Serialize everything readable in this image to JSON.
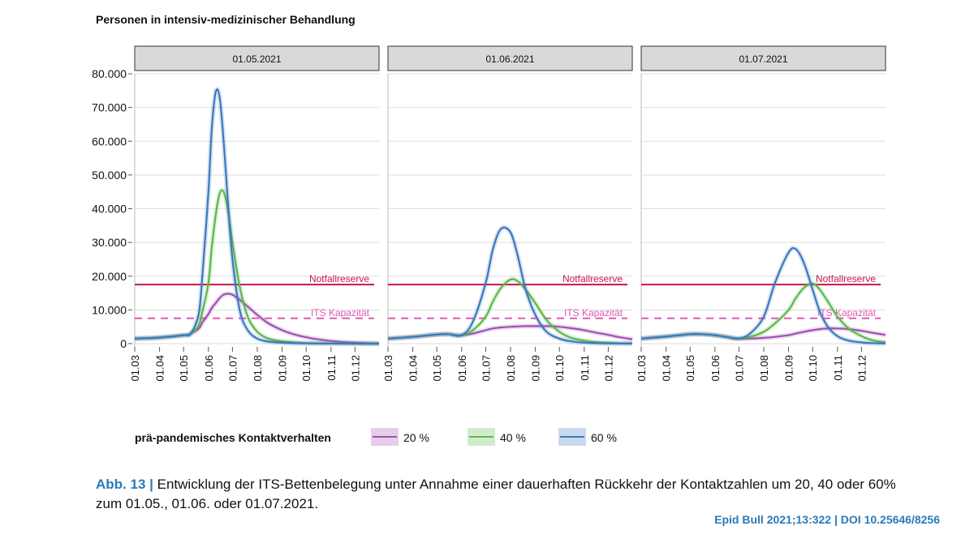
{
  "chart_data": {
    "type": "line",
    "title": "Personen in intensiv-medizinischer Behandlung",
    "y_ticks": [
      "0",
      "10.000",
      "20.000",
      "30.000",
      "40.000",
      "50.000",
      "60.000",
      "70.000",
      "80.000"
    ],
    "ylim": [
      0,
      80000
    ],
    "x_ticks": [
      "01.03",
      "01.04",
      "01.05",
      "01.06",
      "01.07",
      "01.08",
      "01.09",
      "01.10",
      "01.11",
      "01.12"
    ],
    "x_range": [
      "2021-03-01",
      "2021-12-31"
    ],
    "grid": true,
    "colors": {
      "s20": "#a050b4",
      "s40": "#5cb84a",
      "s60": "#3c78bf",
      "notfall": "#c8144c",
      "its": "#e05ab4"
    },
    "reference_lines": [
      {
        "label": "Notfallreserve",
        "y": 17500,
        "style": "solid"
      },
      {
        "label": "ITS Kapazität",
        "y": 7500,
        "style": "dashed"
      }
    ],
    "legend": {
      "title": "prä-pandemisches Kontaktverhalten",
      "items": [
        "20 %",
        "40 %",
        "60 %"
      ],
      "position": "bottom"
    },
    "panels": [
      {
        "label": "01.05.2021",
        "x": [
          "2021-03-01",
          "2021-04-01",
          "2021-05-01",
          "2021-05-10",
          "2021-05-20",
          "2021-05-25",
          "2021-06-01",
          "2021-06-05",
          "2021-06-10",
          "2021-06-15",
          "2021-06-20",
          "2021-06-25",
          "2021-07-01",
          "2021-07-10",
          "2021-07-20",
          "2021-08-01",
          "2021-08-15",
          "2021-09-01",
          "2021-09-15",
          "2021-10-01",
          "2021-10-15",
          "2021-11-01",
          "2021-11-15",
          "2021-12-01",
          "2021-12-15",
          "2021-12-31"
        ],
        "series": [
          {
            "name": "20 %",
            "values": [
              1500,
              1800,
              2500,
              3000,
              4500,
              6500,
              8800,
              10500,
              12000,
              13500,
              14500,
              14800,
              14500,
              13000,
              11000,
              8500,
              6000,
              4000,
              2800,
              1900,
              1300,
              800,
              500,
              300,
              150,
              50
            ]
          },
          {
            "name": "40 %",
            "values": [
              1500,
              1800,
              2500,
              3000,
              5500,
              10000,
              18000,
              28000,
              38000,
              44500,
              45000,
              40000,
              30000,
              17000,
              8000,
              3500,
              1500,
              700,
              400,
              200,
              100,
              50,
              30,
              20,
              10,
              0
            ]
          },
          {
            "name": "60 %",
            "values": [
              1500,
              1800,
              2500,
              3000,
              9000,
              22000,
              45000,
              63000,
              74500,
              73000,
              60000,
              43000,
              25000,
              10000,
              4000,
              1500,
              600,
              300,
              150,
              80,
              40,
              20,
              10,
              5,
              0,
              0
            ]
          }
        ]
      },
      {
        "label": "01.06.2021",
        "x": [
          "2021-03-01",
          "2021-04-01",
          "2021-05-01",
          "2021-05-15",
          "2021-06-01",
          "2021-06-15",
          "2021-07-01",
          "2021-07-10",
          "2021-07-20",
          "2021-08-01",
          "2021-08-10",
          "2021-08-20",
          "2021-09-01",
          "2021-09-15",
          "2021-10-01",
          "2021-10-15",
          "2021-11-01",
          "2021-11-15",
          "2021-12-01",
          "2021-12-15",
          "2021-12-31"
        ],
        "series": [
          {
            "name": "20 %",
            "values": [
              1500,
              2000,
              2700,
              2800,
              2500,
              3000,
              4000,
              4500,
              4800,
              5000,
              5100,
              5200,
              5200,
              5200,
              5000,
              4600,
              4000,
              3300,
              2600,
              1900,
              1300
            ]
          },
          {
            "name": "40 %",
            "values": [
              1500,
              2000,
              2700,
              2800,
              2500,
              4000,
              8000,
              12500,
              16500,
              19000,
              18500,
              16000,
              12000,
              7000,
              3500,
              1800,
              900,
              450,
              250,
              100,
              50
            ]
          },
          {
            "name": "60 %",
            "values": [
              1500,
              2000,
              2700,
              2800,
              2500,
              6500,
              18000,
              28000,
              34000,
              33000,
              26000,
              16000,
              8500,
              3500,
              1500,
              700,
              300,
              150,
              80,
              40,
              20
            ]
          }
        ]
      },
      {
        "label": "01.07.2021",
        "x": [
          "2021-03-01",
          "2021-04-01",
          "2021-05-01",
          "2021-05-15",
          "2021-06-01",
          "2021-06-15",
          "2021-07-01",
          "2021-07-15",
          "2021-08-01",
          "2021-08-15",
          "2021-09-01",
          "2021-09-10",
          "2021-09-20",
          "2021-10-01",
          "2021-10-10",
          "2021-10-20",
          "2021-11-01",
          "2021-11-15",
          "2021-12-01",
          "2021-12-15",
          "2021-12-31"
        ],
        "series": [
          {
            "name": "20 %",
            "values": [
              1500,
              2100,
              2800,
              2800,
              2500,
              2000,
              1500,
              1500,
              1700,
              2000,
              2500,
              3000,
              3500,
              4000,
              4300,
              4500,
              4500,
              4300,
              3800,
              3200,
              2600
            ]
          },
          {
            "name": "40 %",
            "values": [
              1500,
              2100,
              2800,
              2800,
              2500,
              2000,
              1500,
              2000,
              3500,
              6000,
              10000,
              13500,
              16500,
              17800,
              16000,
              12500,
              8000,
              4500,
              2200,
              1000,
              400
            ]
          },
          {
            "name": "60 %",
            "values": [
              1500,
              2100,
              2800,
              2800,
              2500,
              2000,
              1500,
              3000,
              8000,
              18000,
              27000,
              28000,
              24000,
              16000,
              9500,
              5000,
              2200,
              900,
              350,
              150,
              50
            ]
          }
        ]
      }
    ]
  },
  "caption": {
    "label": "Abb. 13",
    "separator": "|",
    "text": "Entwicklung der ITS-Bettenbelegung unter Annahme einer dauerhaften Rückkehr der Kontaktzahlen um 20, 40 oder 60% zum 01.05., 01.06. oder 01.07.2021."
  },
  "citation": "Epid Bull 2021;13:322 | DOI 10.25646/8256"
}
